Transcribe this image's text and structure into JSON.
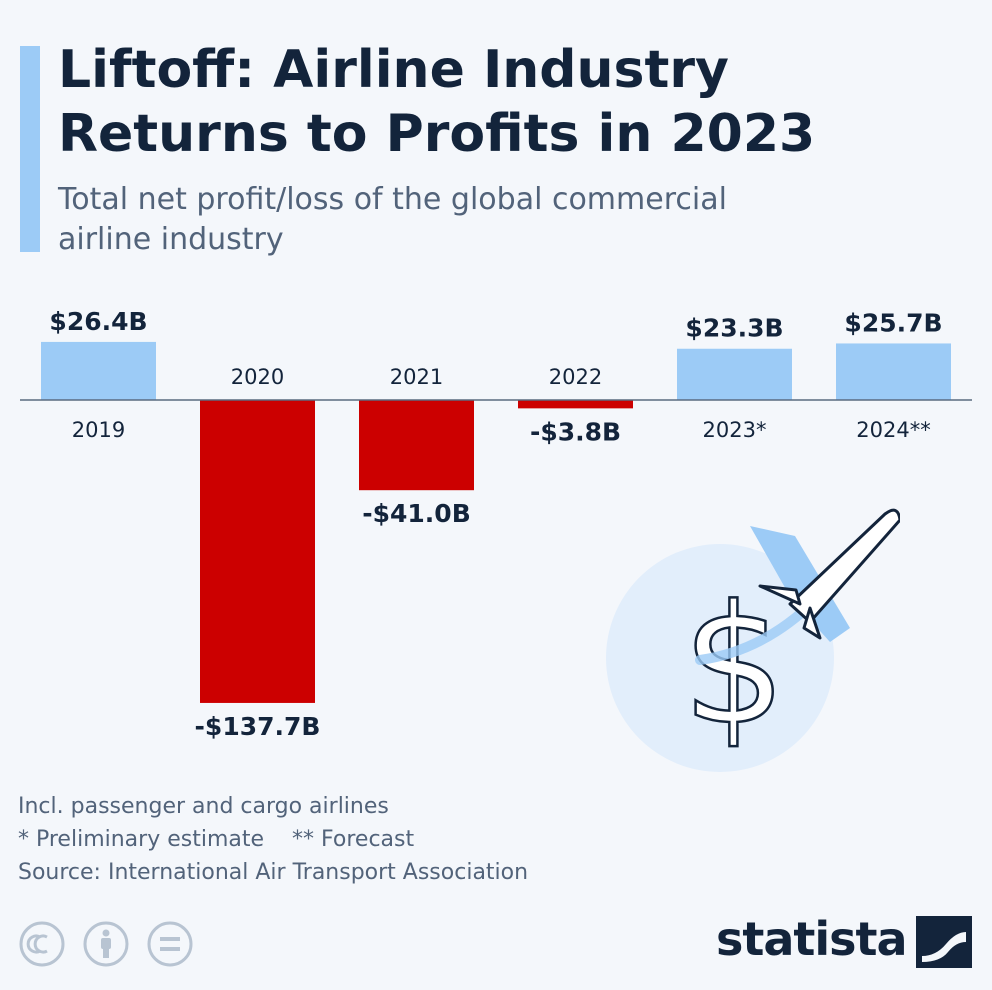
{
  "header": {
    "title": "Liftoff: Airline Industry Returns to Profits in 2023",
    "subtitle": "Total net profit/loss of the global commercial airline industry"
  },
  "chart_data": {
    "type": "bar",
    "categories": [
      "2019",
      "2020",
      "2021",
      "2022",
      "2023*",
      "2024**"
    ],
    "values": [
      26.4,
      -137.7,
      -41.0,
      -3.8,
      23.3,
      25.7
    ],
    "value_labels": [
      "$26.4B",
      "-$137.7B",
      "-$41.0B",
      "-$3.8B",
      "$23.3B",
      "$25.7B"
    ],
    "ylim": [
      -137.7,
      26.4
    ],
    "grid": false,
    "colors": {
      "positive": "#9ccbf6",
      "negative": "#cc0000"
    }
  },
  "notes": {
    "line1": "Incl. passenger and cargo airlines",
    "preliminary": "* Preliminary estimate",
    "forecast": "** Forecast",
    "source": "Source: International Air Transport Association"
  },
  "branding": {
    "name": "statista",
    "license_icons": [
      "cc-icon",
      "attribution-icon",
      "no-derivatives-icon"
    ]
  },
  "illustration": {
    "icons": [
      "dollar-sign-icon",
      "airplane-icon"
    ],
    "dollar_glyph": "$"
  },
  "colors": {
    "accent": "#9ccbf6",
    "title": "#13243b",
    "text": "#52637a",
    "background": "#f4f7fb"
  }
}
